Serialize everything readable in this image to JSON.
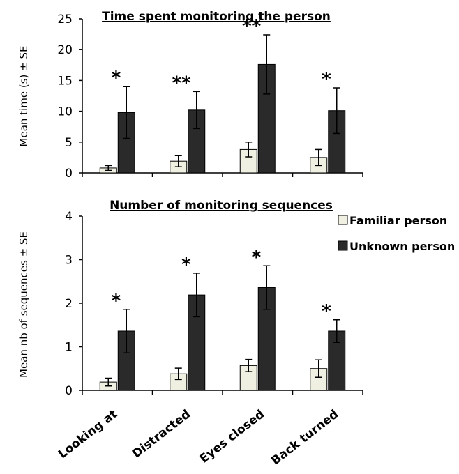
{
  "chart_data": [
    {
      "type": "bar",
      "title": "Time spent monitoring the person",
      "ylabel": "Mean time (s) ± SE",
      "ylim": [
        0,
        25
      ],
      "yticks": [
        "0",
        "5",
        "10",
        "15",
        "20",
        "25"
      ],
      "categories": [
        "Looking at",
        "Distracted",
        "Eyes closed",
        "Back turned"
      ],
      "series": [
        {
          "name": "Familiar person",
          "color": "#efefe2",
          "values": [
            0.8,
            1.9,
            3.8,
            2.5
          ],
          "se": [
            0.4,
            0.9,
            1.2,
            1.3
          ]
        },
        {
          "name": "Unknown person",
          "color": "#2a2a2a",
          "values": [
            9.8,
            10.2,
            17.6,
            10.1
          ],
          "se": [
            4.2,
            3.0,
            4.8,
            3.7
          ]
        }
      ],
      "significance": [
        "*",
        "**",
        "**",
        "*"
      ]
    },
    {
      "type": "bar",
      "title": "Number of monitoring sequences",
      "ylabel": "Mean nb of sequences  ± SE",
      "ylim": [
        0,
        4
      ],
      "yticks": [
        "0",
        "1",
        "2",
        "3",
        "4"
      ],
      "categories": [
        "Looking at",
        "Distracted",
        "Eyes closed",
        "Back turned"
      ],
      "series": [
        {
          "name": "Familiar person",
          "color": "#efefe2",
          "values": [
            0.19,
            0.38,
            0.57,
            0.5
          ],
          "se": [
            0.09,
            0.13,
            0.14,
            0.2
          ]
        },
        {
          "name": "Unknown person",
          "color": "#2a2a2a",
          "values": [
            1.36,
            2.19,
            2.36,
            1.36
          ],
          "se": [
            0.5,
            0.5,
            0.5,
            0.26
          ]
        }
      ],
      "significance": [
        "*",
        "*",
        "*",
        "*"
      ]
    }
  ],
  "legend": {
    "items": [
      {
        "label": "Familiar person",
        "color": "#efefe2"
      },
      {
        "label": "Unknown person",
        "color": "#2a2a2a"
      }
    ]
  },
  "xaxis": {
    "categories": [
      "Looking at",
      "Distracted",
      "Eyes closed",
      "Back turned"
    ]
  }
}
